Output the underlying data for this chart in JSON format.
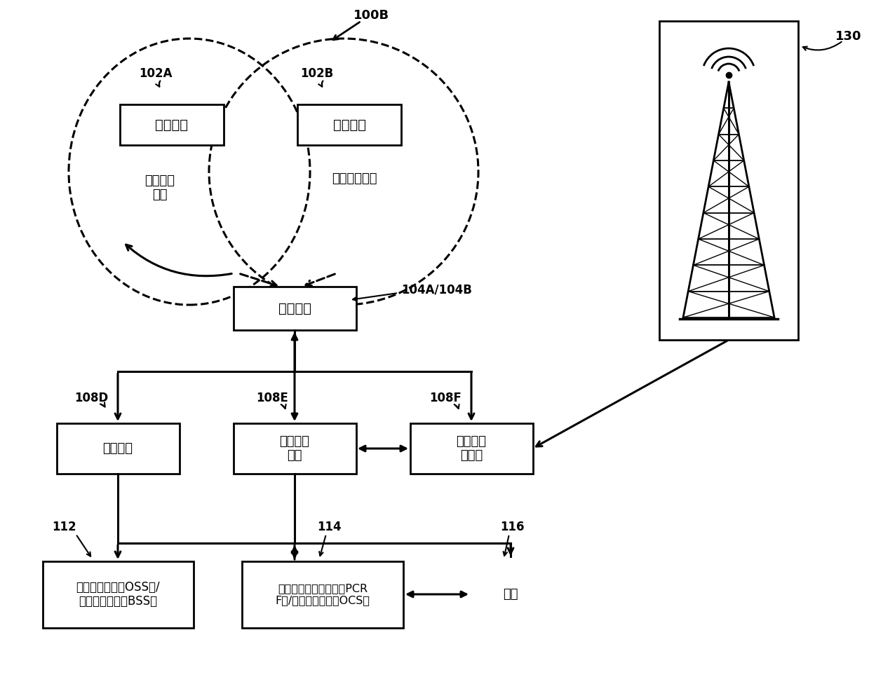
{
  "bg_color": "#ffffff",
  "lc": "#000000",
  "fig_w": 12.39,
  "fig_h": 9.86,
  "dpi": 100,
  "labels": {
    "ue_left": "用户设备",
    "ue_right": "用户设备",
    "net_left": "专用无线\n网络",
    "net_right": "公共无线网络",
    "router": "路由设备",
    "bband": "宽带网关",
    "mobile_gw": "聚合移动\n网关",
    "agg_ctrl": "聚合接入\n控制器",
    "oss": "运营支持系统（OSS）/\n业务支持系统（BSS）",
    "pcrf": "策略和收费规则功能（PCR\nF）/在线收费系统（OCS）",
    "network": "网络",
    "lbl_100B": "100B",
    "lbl_102A": "102A",
    "lbl_102B": "102B",
    "lbl_104": "104A/104B",
    "lbl_108D": "108D",
    "lbl_108E": "108E",
    "lbl_108F": "108F",
    "lbl_112": "112",
    "lbl_114": "114",
    "lbl_116": "116",
    "lbl_130": "130"
  }
}
